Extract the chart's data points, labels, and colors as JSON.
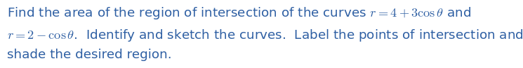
{
  "line1_plain": "Find the area of the region of intersection of the curves ",
  "line1_math": "$r = 4 + 3\\cos\\theta$",
  "line1_end": " and",
  "line2_math": "$r = 2 - \\cos\\theta$",
  "line2_end": ".  Identify and sketch the curves.  Label the points of intersection and",
  "line3": "shade the desired region.",
  "text_color": "#2e5fa3",
  "background_color": "#ffffff",
  "fontsize": 13.2,
  "fig_width": 7.45,
  "fig_height": 0.98,
  "dpi": 100
}
